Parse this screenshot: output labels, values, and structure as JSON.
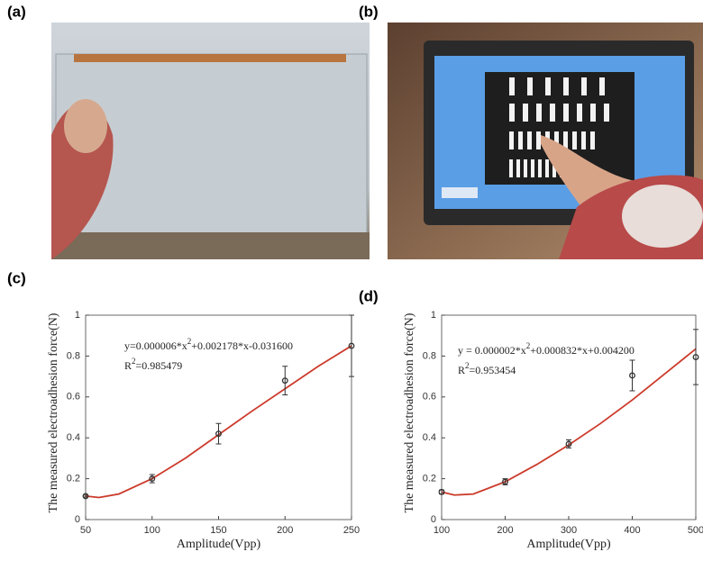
{
  "panel_labels": [
    "(a)",
    "(b)",
    "(c)",
    "(d)"
  ],
  "chart_data": [
    {
      "type": "scatter",
      "x_label": "Amplitude(Vpp)",
      "y_label": "The measured electroadhesion force(N)",
      "equation": [
        "y=0.000006*x",
        "2",
        "+0.002178*x-0.031600"
      ],
      "r_squared": [
        "R",
        "2",
        "=0.985479"
      ],
      "x": [
        50,
        100,
        150,
        200,
        250
      ],
      "values": [
        0.115,
        0.2,
        0.42,
        0.68,
        0.85
      ],
      "errors": [
        0.005,
        0.02,
        0.05,
        0.07,
        0.15
      ],
      "color": "#333333",
      "fit": {
        "color": "#cc3b2b",
        "x": [
          50,
          60,
          75,
          100,
          125,
          150,
          175,
          200,
          225,
          250
        ],
        "values": [
          0.115,
          0.108,
          0.125,
          0.2,
          0.3,
          0.415,
          0.53,
          0.64,
          0.75,
          0.85
        ]
      },
      "xlim": [
        50,
        250
      ],
      "xticks": [
        50,
        100,
        150,
        200,
        250
      ],
      "ylim": [
        0,
        1
      ],
      "yticks": [
        0,
        0.2,
        0.4,
        0.6,
        0.8,
        1
      ]
    },
    {
      "type": "scatter",
      "x_label": "Amplitude(Vpp)",
      "y_label": "The measured electroadhesion force(N)",
      "equation": [
        "y = 0.000002*x",
        "2",
        "+0.000832*x+0.004200"
      ],
      "r_squared": [
        "R",
        "2",
        "=0.953454"
      ],
      "x": [
        100,
        200,
        300,
        400,
        500
      ],
      "values": [
        0.135,
        0.185,
        0.37,
        0.705,
        0.795
      ],
      "errors": [
        0.01,
        0.015,
        0.02,
        0.075,
        0.135
      ],
      "color": "#333333",
      "fit": {
        "color": "#cc3b2b",
        "x": [
          100,
          120,
          150,
          200,
          250,
          300,
          350,
          400,
          450,
          500
        ],
        "values": [
          0.135,
          0.12,
          0.125,
          0.185,
          0.27,
          0.365,
          0.47,
          0.585,
          0.71,
          0.835
        ]
      },
      "xlim": [
        100,
        500
      ],
      "xticks": [
        100,
        200,
        300,
        400,
        500
      ],
      "ylim": [
        0,
        1
      ],
      "yticks": [
        0,
        0.2,
        0.4,
        0.6,
        0.8,
        1
      ]
    }
  ]
}
